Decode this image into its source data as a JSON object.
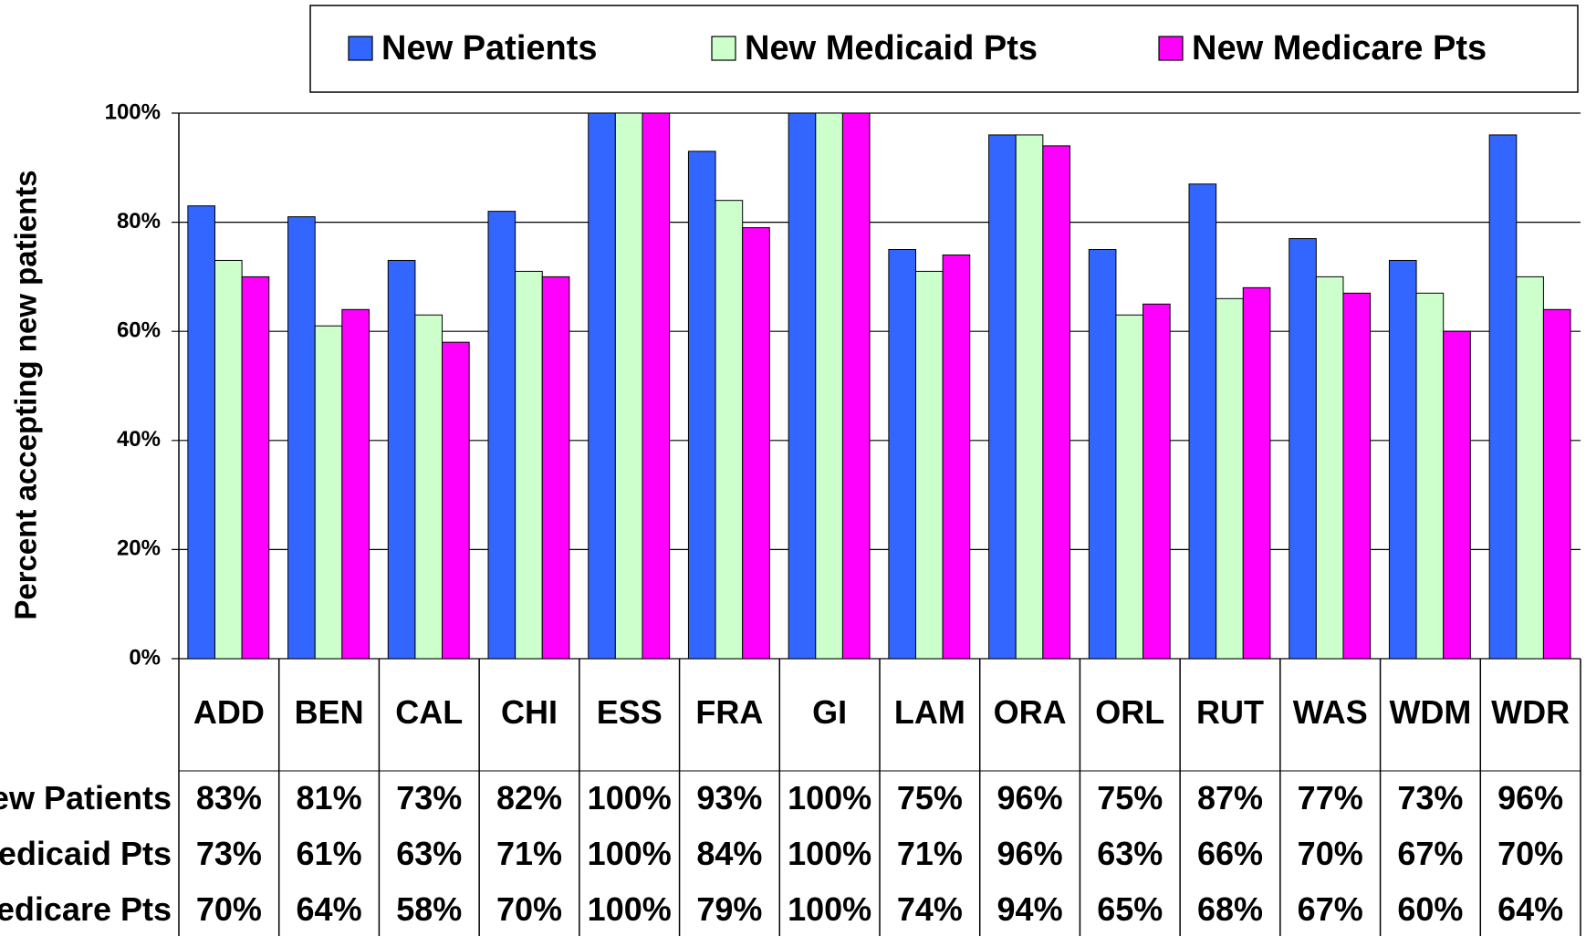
{
  "chart_data": {
    "type": "bar",
    "y_label": "Percent accepting new patients",
    "categories": [
      "ADD",
      "BEN",
      "CAL",
      "CHI",
      "ESS",
      "FRA",
      "GI",
      "LAM",
      "ORA",
      "ORL",
      "RUT",
      "WAS",
      "WDM",
      "WDR"
    ],
    "series": [
      {
        "name": "New Patients",
        "color": "#3366ff",
        "values": [
          83,
          81,
          73,
          82,
          100,
          93,
          100,
          75,
          96,
          75,
          87,
          77,
          73,
          96
        ],
        "value_labels": [
          "83%",
          "81%",
          "73%",
          "82%",
          "100%",
          "93%",
          "100%",
          "75%",
          "96%",
          "75%",
          "87%",
          "77%",
          "73%",
          "96%"
        ]
      },
      {
        "name": "New Medicaid Pts",
        "color": "#ccffcc",
        "values": [
          73,
          61,
          63,
          71,
          100,
          84,
          100,
          71,
          96,
          63,
          66,
          70,
          67,
          70
        ],
        "value_labels": [
          "73%",
          "61%",
          "63%",
          "71%",
          "100%",
          "84%",
          "100%",
          "71%",
          "96%",
          "63%",
          "66%",
          "70%",
          "67%",
          "70%"
        ]
      },
      {
        "name": "New Medicare Pts",
        "color": "#ff00ff",
        "values": [
          70,
          64,
          58,
          70,
          100,
          79,
          100,
          74,
          94,
          65,
          68,
          67,
          60,
          64
        ],
        "value_labels": [
          "70%",
          "64%",
          "58%",
          "70%",
          "100%",
          "79%",
          "100%",
          "74%",
          "94%",
          "65%",
          "68%",
          "67%",
          "60%",
          "64%"
        ]
      }
    ],
    "ylim": [
      0,
      100
    ],
    "yticks": [
      {
        "value": 0,
        "label": "0%"
      },
      {
        "value": 20,
        "label": "20%"
      },
      {
        "value": 40,
        "label": "40%"
      },
      {
        "value": 60,
        "label": "60%"
      },
      {
        "value": 80,
        "label": "80%"
      },
      {
        "value": 100,
        "label": "100%"
      }
    ],
    "grid": true,
    "legend": "top"
  }
}
